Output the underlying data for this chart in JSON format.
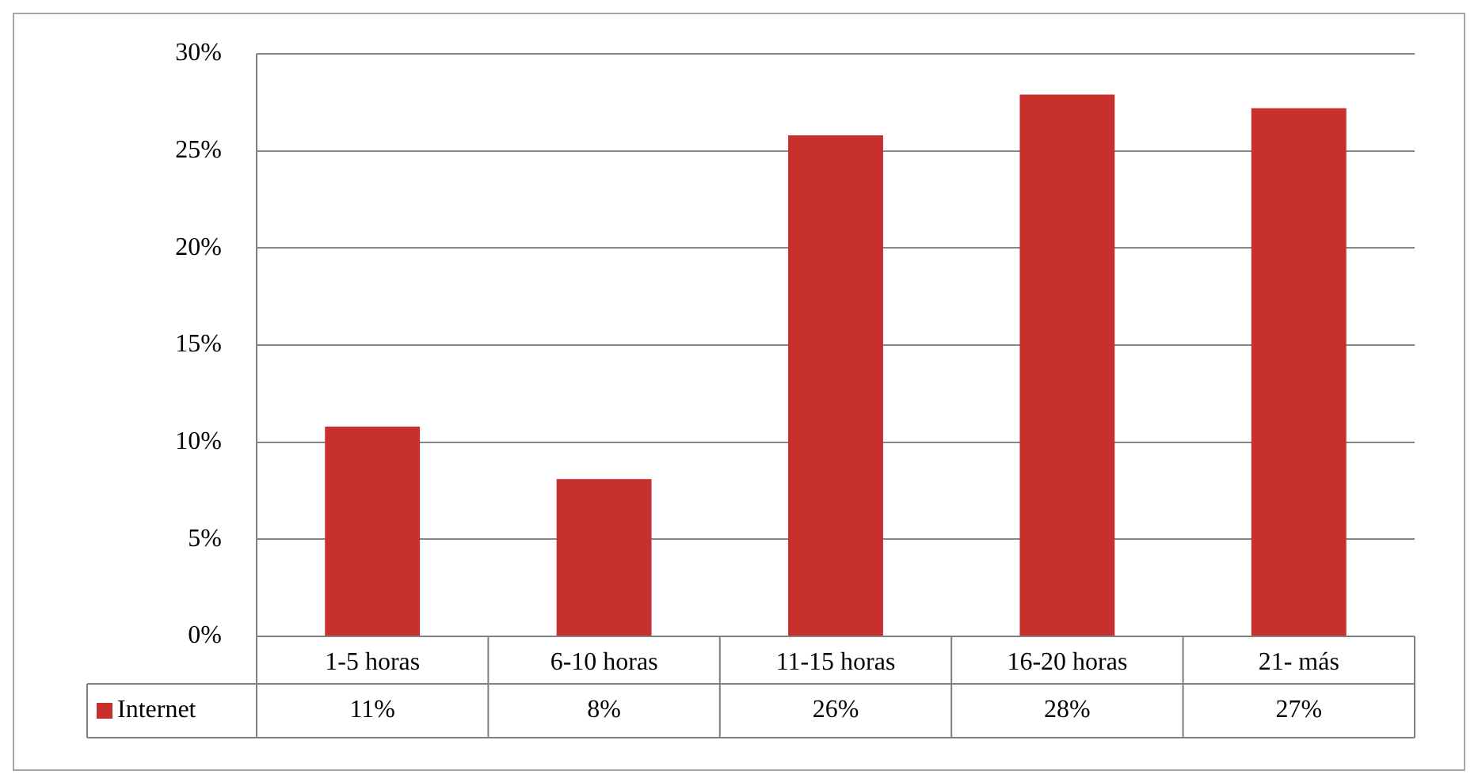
{
  "chart_data": {
    "type": "bar",
    "categories": [
      "1-5 horas",
      "6-10 horas",
      "11-15 horas",
      "16-20 horas",
      "21- más"
    ],
    "series": [
      {
        "name": "Internet",
        "color": "#c8302d",
        "values": [
          10.8,
          8.1,
          25.8,
          27.9,
          27.2
        ],
        "value_labels": [
          "11%",
          "8%",
          "26%",
          "28%",
          "27%"
        ]
      }
    ],
    "ylim": [
      0,
      30
    ],
    "yticks": [
      {
        "value": 0,
        "label": "0%"
      },
      {
        "value": 5,
        "label": "5%"
      },
      {
        "value": 10,
        "label": "10%"
      },
      {
        "value": 15,
        "label": "15%"
      },
      {
        "value": 20,
        "label": "20%"
      },
      {
        "value": 25,
        "label": "25%"
      },
      {
        "value": 30,
        "label": "30%"
      }
    ],
    "grid": "y",
    "legend": "bottom"
  }
}
